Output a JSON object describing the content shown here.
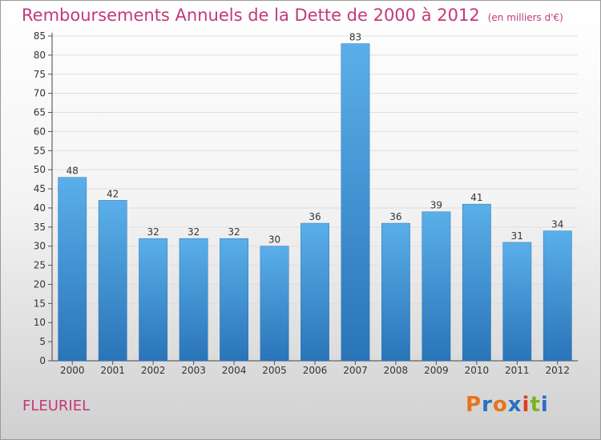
{
  "header": {
    "title": "Remboursements Annuels de la Dette de 2000 à 2012",
    "unit": "(en milliers d'€)"
  },
  "footer": {
    "location": "FLEURIEL",
    "logo_text": "Proxiti",
    "logo_colors": [
      "#e8731c",
      "#2b6fc2",
      "#e8731c",
      "#2b6fc2",
      "#e23d26",
      "#7ab51d",
      "#2b6fc2"
    ]
  },
  "chart_data": {
    "type": "bar",
    "categories": [
      "2000",
      "2001",
      "2002",
      "2003",
      "2004",
      "2005",
      "2006",
      "2007",
      "2008",
      "2009",
      "2010",
      "2011",
      "2012"
    ],
    "values": [
      48,
      42,
      32,
      32,
      32,
      30,
      36,
      83,
      36,
      39,
      41,
      31,
      34
    ],
    "data_labels": [
      "48",
      "42",
      "32",
      "32",
      "32",
      "30",
      "36",
      "83",
      "36",
      "39",
      "41",
      "31",
      "34"
    ],
    "yticks": [
      0,
      5,
      10,
      15,
      20,
      25,
      30,
      35,
      40,
      45,
      50,
      55,
      60,
      65,
      70,
      75,
      80,
      85
    ],
    "ylim": [
      0,
      85
    ],
    "grid": true,
    "bar_color": "#3a8fd6",
    "bar_color_light": "#5aafe9",
    "bar_color_dark": "#2a74b8"
  }
}
